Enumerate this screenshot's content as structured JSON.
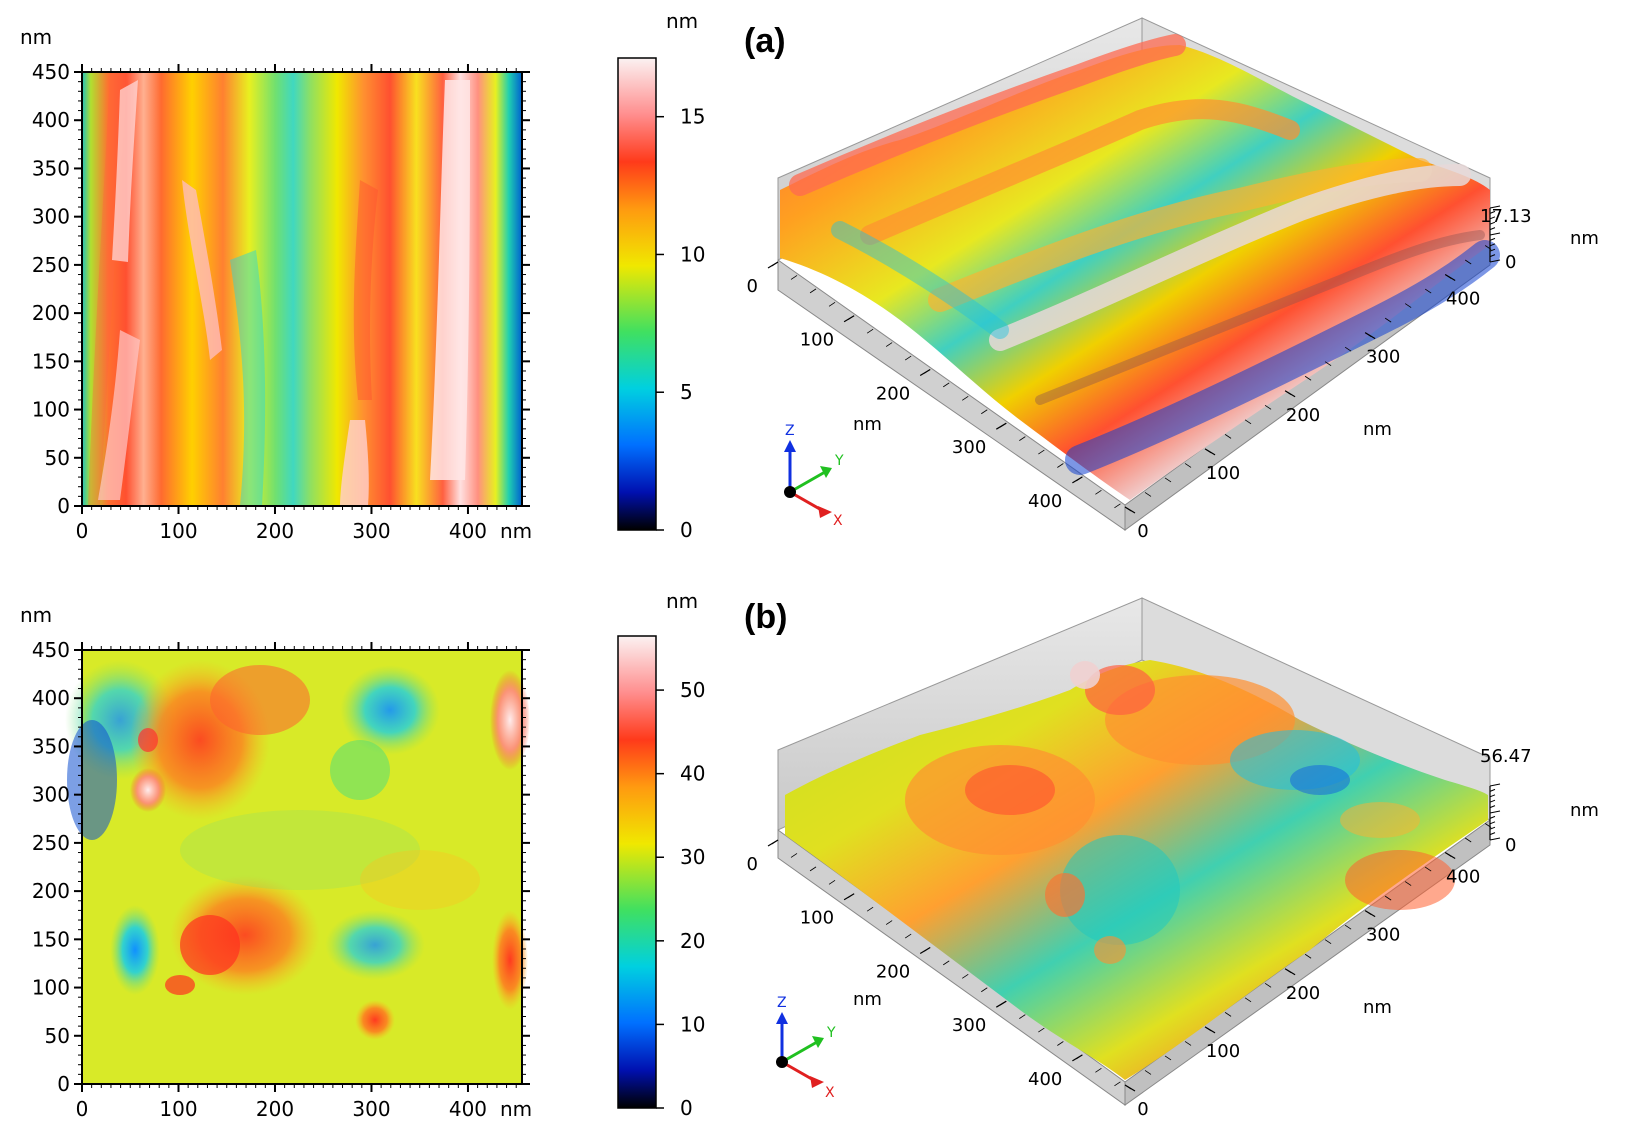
{
  "panels": [
    {
      "label": "(a)",
      "map2d": {
        "y_unit": "nm",
        "x_unit": "nm",
        "y_ticks": [
          "450",
          "400",
          "350",
          "300",
          "250",
          "200",
          "150",
          "100",
          "50",
          "0"
        ],
        "x_ticks": [
          "0",
          "100",
          "200",
          "300",
          "400"
        ]
      },
      "colorbar": {
        "unit": "nm",
        "ticks": [
          "15",
          "10",
          "5",
          "0"
        ],
        "max": 17.13
      },
      "map3d": {
        "z_max_label": "17.13",
        "z_zero_label": "0",
        "z_unit": "nm",
        "left_axis_ticks": [
          "0",
          "100",
          "200",
          "300",
          "400"
        ],
        "left_axis_unit": "nm",
        "right_axis_ticks": [
          "0",
          "100",
          "200",
          "300",
          "400"
        ],
        "right_axis_unit": "nm",
        "triad": {
          "z": "Z",
          "y": "Y",
          "x": "X"
        }
      }
    },
    {
      "label": "(b)",
      "map2d": {
        "y_unit": "nm",
        "x_unit": "nm",
        "y_ticks": [
          "450",
          "400",
          "350",
          "300",
          "250",
          "200",
          "150",
          "100",
          "50",
          "0"
        ],
        "x_ticks": [
          "0",
          "100",
          "200",
          "300",
          "400"
        ]
      },
      "colorbar": {
        "unit": "nm",
        "ticks": [
          "50",
          "40",
          "30",
          "20",
          "10",
          "0"
        ],
        "max": 56.47
      },
      "map3d": {
        "z_max_label": "56.47",
        "z_zero_label": "0",
        "z_unit": "nm",
        "left_axis_ticks": [
          "0",
          "100",
          "200",
          "300",
          "400"
        ],
        "left_axis_unit": "nm",
        "right_axis_ticks": [
          "0",
          "100",
          "200",
          "300",
          "400"
        ],
        "right_axis_unit": "nm",
        "triad": {
          "z": "Z",
          "y": "Y",
          "x": "X"
        }
      }
    }
  ],
  "colors": {
    "scale": [
      "#000000",
      "#0018c8",
      "#00b4ff",
      "#20e090",
      "#e0f000",
      "#ffd000",
      "#ff7a10",
      "#ff4020",
      "#f8f0f0"
    ]
  }
}
